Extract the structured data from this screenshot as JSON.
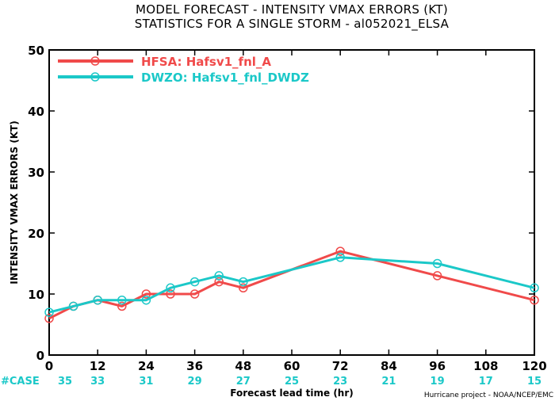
{
  "chart_data": {
    "type": "line",
    "title": "MODEL FORECAST - INTENSITY VMAX ERRORS (KT)",
    "subtitle": "STATISTICS FOR A SINGLE STORM - al052021_ELSA",
    "xlabel": "Forecast lead time (hr)",
    "ylabel": "INTENSITY VMAX ERRORS (KT)",
    "xlim": [
      0,
      120
    ],
    "ylim": [
      0,
      50
    ],
    "x_ticks": [
      0,
      12,
      24,
      36,
      48,
      60,
      72,
      84,
      96,
      108,
      120
    ],
    "y_ticks": [
      0,
      10,
      20,
      30,
      40,
      50
    ],
    "legend_position": "top-left",
    "case_label": "#CASE",
    "cases": [
      35,
      33,
      31,
      29,
      27,
      25,
      23,
      21,
      19,
      17,
      15
    ],
    "credit": "Hurricane project - NOAA/NCEP/EMC",
    "series": [
      {
        "name": "HFSA: Hafsv1_fnl_A",
        "color": "#f04a4a",
        "x": [
          0,
          6,
          12,
          18,
          24,
          30,
          36,
          42,
          48,
          72,
          96,
          120
        ],
        "y": [
          6,
          8,
          9,
          8,
          10,
          10,
          10,
          12,
          11,
          17,
          13,
          9
        ]
      },
      {
        "name": "DWZO: Hafsv1_fnl_DWDZ",
        "color": "#1bc8c8",
        "x": [
          0,
          6,
          12,
          18,
          24,
          30,
          36,
          42,
          48,
          72,
          96,
          120
        ],
        "y": [
          7,
          8,
          9,
          9,
          9,
          11,
          12,
          13,
          12,
          16,
          15,
          11
        ]
      }
    ]
  }
}
